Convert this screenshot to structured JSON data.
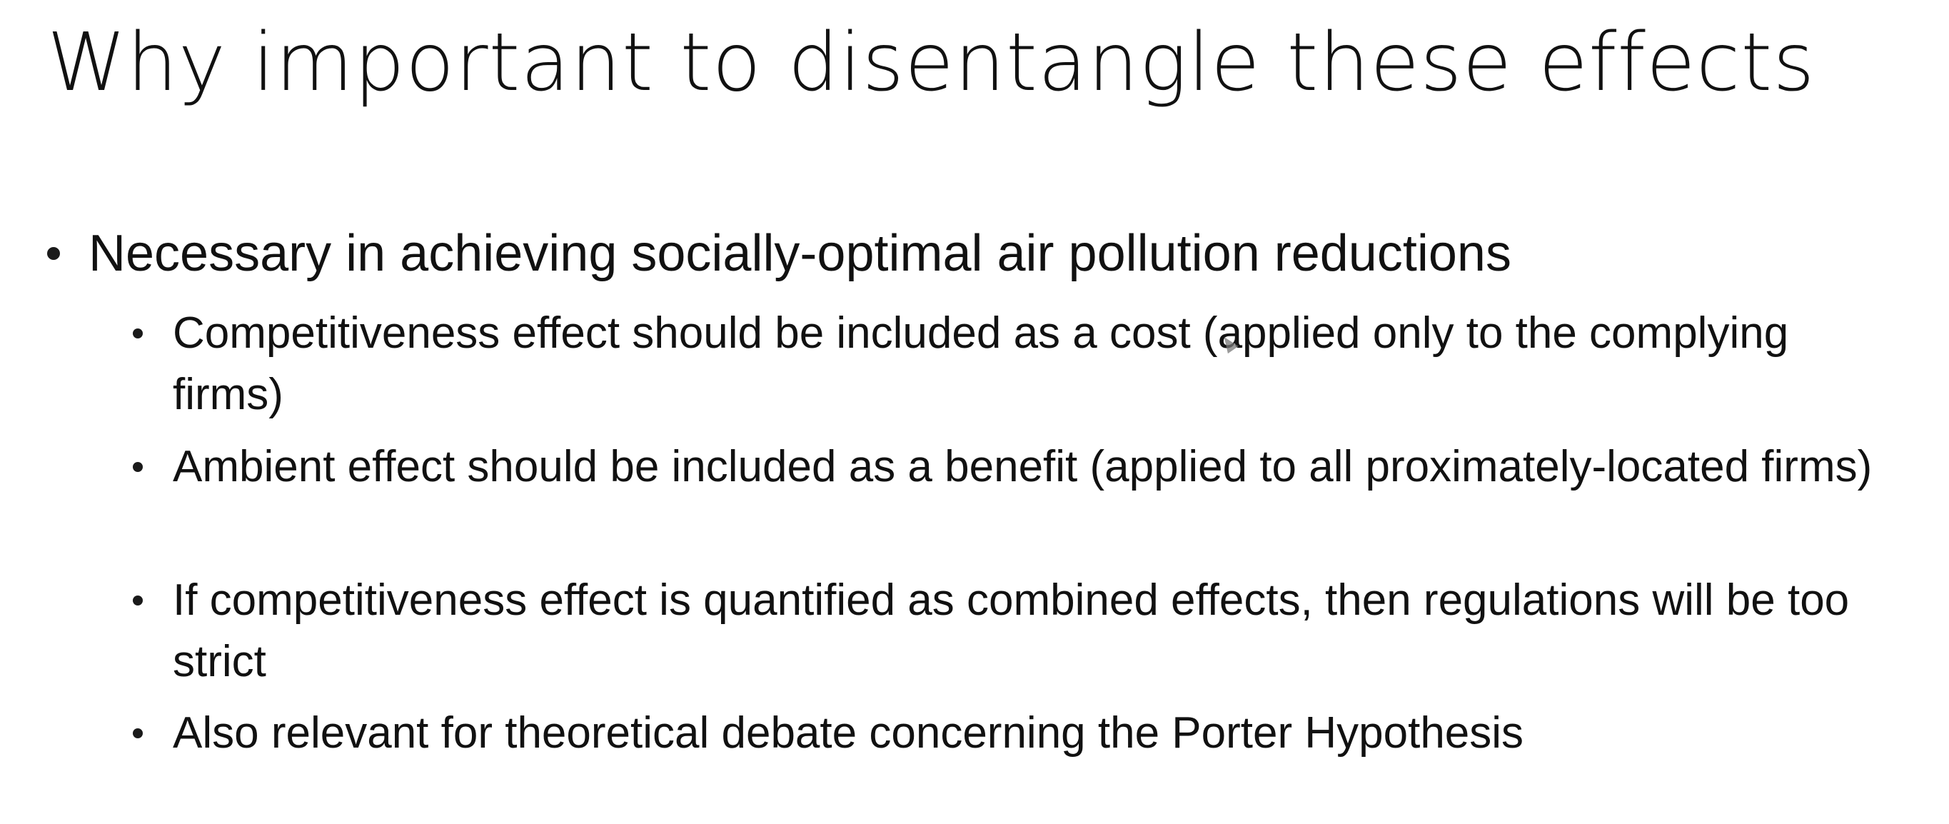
{
  "slide": {
    "title": "Why important to disentangle these effects",
    "bullets": [
      {
        "text": "Necessary in achieving socially-optimal air pollution reductions",
        "sub": [
          "Competitiveness effect should be included as a cost (applied only to the complying firms)",
          "Ambient effect should be included as a benefit (applied to all proximately-located firms)",
          "If competitiveness effect is quantified as combined effects, then regulations will be too strict",
          "Also relevant for theoretical debate concerning the Porter Hypothesis"
        ]
      }
    ]
  },
  "icons": {
    "bullet": "bullet-dot-icon",
    "cursor": "mouse-pointer-icon"
  },
  "colors": {
    "background": "#ffffff",
    "text": "#111111"
  }
}
